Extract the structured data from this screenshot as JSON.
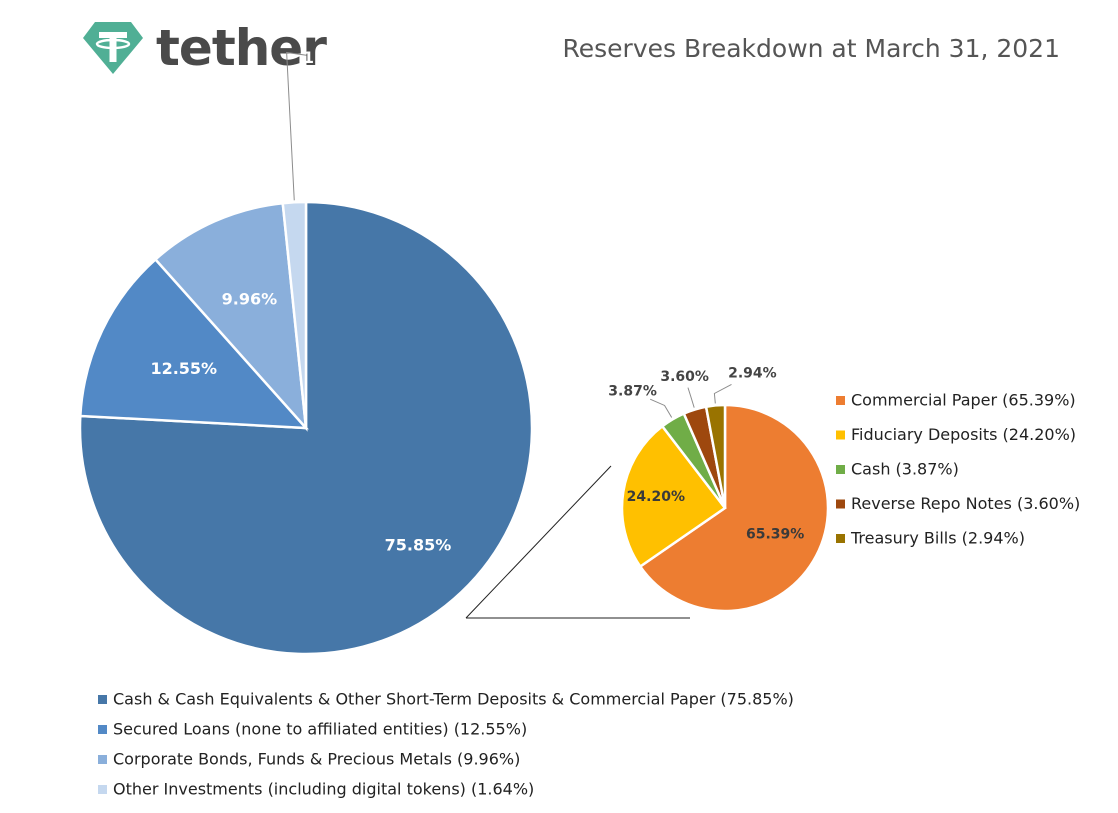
{
  "header": {
    "logo_text": "tether",
    "title": "Reserves Breakdown at March 31, 2021"
  },
  "colors": {
    "logo_green": "#50AF95"
  },
  "chart_data": [
    {
      "type": "pie",
      "labels": [
        "Cash & Cash Equivalents & Other Short-Term Deposits & Commercial Paper (75.85%)",
        "Secured Loans (none to affiliated entities) (12.55%)",
        "Corporate Bonds, Funds & Precious Metals (9.96%)",
        "Other Investments (including digital tokens) (1.64%)"
      ],
      "values": [
        75.85,
        12.55,
        9.96,
        1.64
      ],
      "data_labels": [
        "75.85%",
        "12.55%",
        "9.96%",
        "1.64%"
      ],
      "colors": [
        "#4677A8",
        "#5289C6",
        "#8AAFDB",
        "#C5D8EF"
      ],
      "legend_position": "bottom",
      "exploded_slice": "Cash & Cash Equivalents & Other Short-Term Deposits & Commercial Paper (75.85%)"
    },
    {
      "type": "pie",
      "labels": [
        "Commercial Paper (65.39%)",
        "Fiduciary Deposits (24.20%)",
        "Cash (3.87%)",
        "Reverse Repo Notes (3.60%)",
        "Treasury Bills (2.94%)"
      ],
      "values": [
        65.39,
        24.2,
        3.87,
        3.6,
        2.94
      ],
      "data_labels": [
        "65.39%",
        "24.20%",
        "3.87%",
        "3.60%",
        "2.94%"
      ],
      "colors": [
        "#ED7D31",
        "#FFC000",
        "#70AD47",
        "#9E480E",
        "#997300"
      ],
      "legend_position": "right"
    }
  ]
}
